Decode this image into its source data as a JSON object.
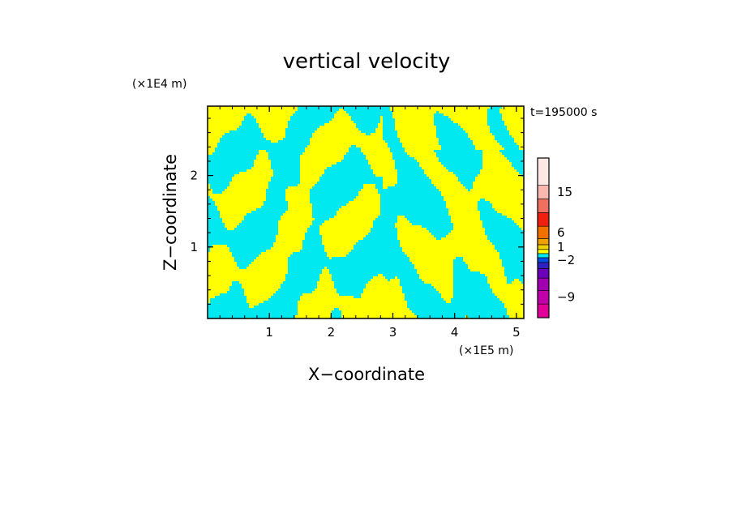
{
  "chart_data": {
    "type": "heatmap",
    "title": "vertical velocity",
    "xlabel": "X−coordinate",
    "ylabel": "Z−coordinate",
    "x_unit": "(×1E5 m)",
    "y_unit": "(×1E4 m)",
    "time_label": "t=195000 s",
    "xlim": [
      0,
      5.12
    ],
    "ylim": [
      0,
      2.97
    ],
    "x_ticks": [
      1,
      2,
      3,
      4,
      5
    ],
    "y_ticks": [
      1,
      2
    ],
    "x_tick_labels": [
      "1",
      "2",
      "3",
      "4",
      "5"
    ],
    "y_tick_labels": [
      "1",
      "2"
    ],
    "grid": false,
    "field": {
      "description_colors": {
        "negative": "#00e8f0",
        "positive": "#ffff00"
      },
      "seed": 195000
    },
    "colorbar": {
      "levels": [
        {
          "color": "#e00099",
          "label": ""
        },
        {
          "color": "#c000a8",
          "label": "−9"
        },
        {
          "color": "#a000b0",
          "label": ""
        },
        {
          "color": "#6a00b8",
          "label": ""
        },
        {
          "color": "#3020c0",
          "label": ""
        },
        {
          "color": "#0050e8",
          "label": "−2"
        },
        {
          "color": "#00e8f0",
          "label": ""
        },
        {
          "color": "#ffff00",
          "label": ""
        },
        {
          "color": "#f0d000",
          "label": "1"
        },
        {
          "color": "#f0a000",
          "label": ""
        },
        {
          "color": "#f07000",
          "label": "6"
        },
        {
          "color": "#f02010",
          "label": ""
        },
        {
          "color": "#f07060",
          "label": ""
        },
        {
          "color": "#f8b8b0",
          "label": "15"
        },
        {
          "color": "#fde8e4",
          "label": ""
        }
      ],
      "tick_labels": [
        "15",
        "6",
        "1",
        "−2",
        "−9"
      ]
    }
  }
}
